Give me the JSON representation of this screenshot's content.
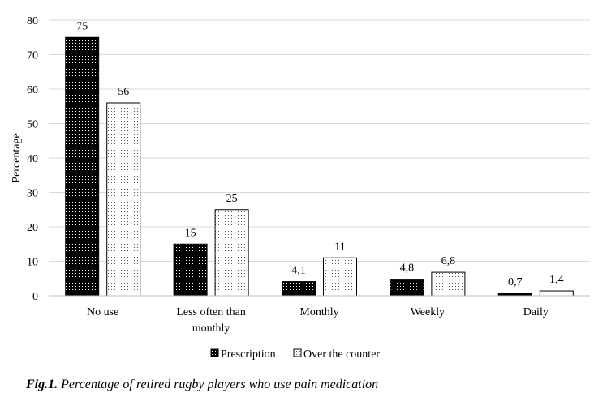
{
  "chart_data": {
    "type": "bar",
    "ylabel": "Percentage",
    "ylim": [
      0,
      80
    ],
    "yticks": [
      0,
      10,
      20,
      30,
      40,
      50,
      60,
      70,
      80
    ],
    "grid": true,
    "categories": [
      "No use",
      "Less often than monthly",
      "Monthly",
      "Weekly",
      "Daily"
    ],
    "category_label_lines": [
      [
        "No use"
      ],
      [
        "Less often than",
        "monthly"
      ],
      [
        "Monthly"
      ],
      [
        "Weekly"
      ],
      [
        "Daily"
      ]
    ],
    "series": [
      {
        "name": "Prescription",
        "values": [
          75,
          15,
          4.1,
          4.8,
          0.7
        ],
        "labels": [
          "75",
          "15",
          "4,1",
          "4,8",
          "0,7"
        ],
        "pattern": "dark"
      },
      {
        "name": "Over the counter",
        "values": [
          56,
          25,
          11,
          6.8,
          1.4
        ],
        "labels": [
          "56",
          "25",
          "11",
          "6,8",
          "1,4"
        ],
        "pattern": "light"
      }
    ],
    "legend_position": "bottom"
  },
  "caption": {
    "prefix": "Fig.1.",
    "text": "Percentage of retired rugby players who use pain medication"
  }
}
